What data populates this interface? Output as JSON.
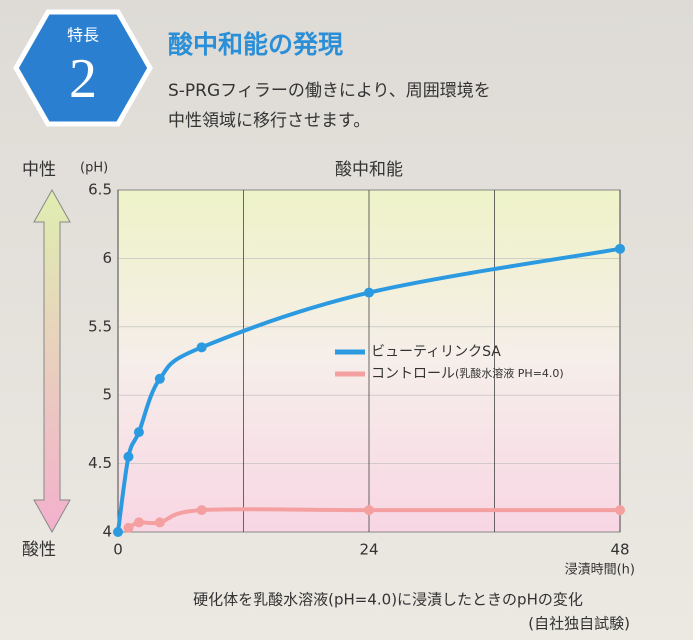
{
  "header": {
    "badge_label": "特長",
    "badge_number": "2",
    "title": "酸中和能の発現",
    "description": [
      "S-PRGフィラーの働きにより、周囲環境を",
      "中性領域に移行させます。"
    ]
  },
  "chart_data": {
    "type": "line",
    "title": "酸中和能",
    "y_unit": "(pH)",
    "y_top_label": "中性",
    "y_bottom_label": "酸性",
    "xlabel": "浸漬時間(h)",
    "xlim": [
      0,
      48
    ],
    "xticks": [
      0,
      24,
      48
    ],
    "xgrid": [
      0,
      12,
      24,
      36,
      48
    ],
    "ylim": [
      4,
      6.5
    ],
    "yticks": [
      4,
      4.5,
      5,
      5.5,
      6,
      6.5
    ],
    "grid": true,
    "legend": "center-right",
    "series": [
      {
        "name": "ビューティリンクSA",
        "color": "#2b9ae0",
        "x": [
          0,
          1,
          2,
          4,
          8,
          24,
          48
        ],
        "values": [
          4.0,
          4.55,
          4.73,
          5.12,
          5.35,
          5.75,
          6.07
        ]
      },
      {
        "name": "コントロール",
        "note": "(乳酸水溶液 PH=4.0)",
        "color": "#f4a0a0",
        "x": [
          1,
          2,
          4,
          8,
          24,
          48
        ],
        "values": [
          4.03,
          4.07,
          4.07,
          4.16,
          4.16,
          4.16
        ]
      }
    ],
    "caption": [
      "硬化体を乳酸水溶液(pH=4.0)に浸漬したときのpHの変化",
      "(自社独自試験)"
    ]
  }
}
